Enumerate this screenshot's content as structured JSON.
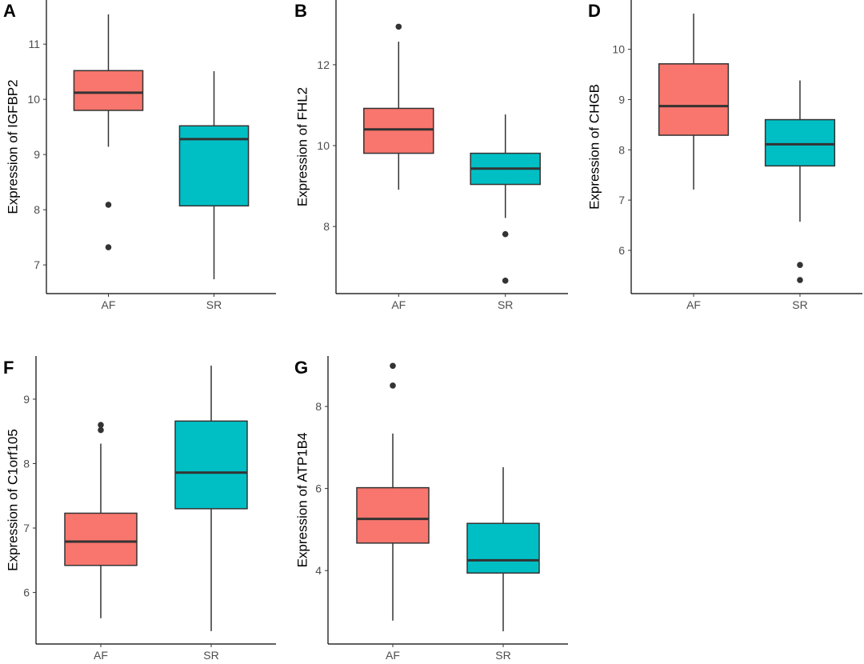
{
  "colors": {
    "AF": "#F8766D",
    "SR": "#00BFC4",
    "line": "#333333"
  },
  "chart_data": [
    {
      "type": "box",
      "panel": "A",
      "ylabel": "Expression of  IGFBP2",
      "categories": [
        "AF",
        "SR"
      ],
      "ylim": [
        6.48,
        11.8
      ],
      "yticks": [
        7,
        8,
        9,
        10,
        11
      ],
      "boxes": [
        {
          "group": "AF",
          "whisker_low": 9.14,
          "q1": 9.8,
          "median": 10.12,
          "q3": 10.52,
          "whisker_high": 11.54,
          "outliers": [
            8.09,
            7.32
          ]
        },
        {
          "group": "SR",
          "whisker_low": 6.74,
          "q1": 8.07,
          "median": 9.28,
          "q3": 9.52,
          "whisker_high": 10.51,
          "outliers": []
        }
      ]
    },
    {
      "type": "box",
      "panel": "B",
      "ylabel": "Expression of  FHL2",
      "categories": [
        "AF",
        "SR"
      ],
      "ylim": [
        6.34,
        13.6
      ],
      "yticks": [
        8,
        10,
        12
      ],
      "boxes": [
        {
          "group": "AF",
          "whisker_low": 8.91,
          "q1": 9.81,
          "median": 10.4,
          "q3": 10.92,
          "whisker_high": 12.57,
          "outliers": [
            12.94
          ]
        },
        {
          "group": "SR",
          "whisker_low": 8.21,
          "q1": 9.04,
          "median": 9.43,
          "q3": 9.81,
          "whisker_high": 10.77,
          "outliers": [
            7.81,
            6.66
          ]
        }
      ]
    },
    {
      "type": "box",
      "panel": "D",
      "ylabel": "Expression of  CHGB",
      "categories": [
        "AF",
        "SR"
      ],
      "ylim": [
        5.14,
        10.98
      ],
      "yticks": [
        6,
        7,
        8,
        9,
        10
      ],
      "boxes": [
        {
          "group": "AF",
          "whisker_low": 7.21,
          "q1": 8.29,
          "median": 8.87,
          "q3": 9.71,
          "whisker_high": 10.71,
          "outliers": []
        },
        {
          "group": "SR",
          "whisker_low": 6.57,
          "q1": 7.68,
          "median": 8.11,
          "q3": 8.6,
          "whisker_high": 9.38,
          "outliers": [
            5.71,
            5.41
          ]
        }
      ]
    },
    {
      "type": "box",
      "panel": "F",
      "ylabel": "Expression of  C1orf105",
      "categories": [
        "AF",
        "SR"
      ],
      "ylim": [
        5.2,
        9.67
      ],
      "yticks": [
        6,
        7,
        8,
        9
      ],
      "boxes": [
        {
          "group": "AF",
          "whisker_low": 5.6,
          "q1": 6.42,
          "median": 6.79,
          "q3": 7.23,
          "whisker_high": 8.31,
          "outliers": [
            8.6,
            8.52
          ]
        },
        {
          "group": "SR",
          "whisker_low": 5.4,
          "q1": 7.3,
          "median": 7.86,
          "q3": 8.66,
          "whisker_high": 9.52,
          "outliers": []
        }
      ]
    },
    {
      "type": "box",
      "panel": "G",
      "ylabel": "Expression of  ATP1B4",
      "categories": [
        "AF",
        "SR"
      ],
      "ylim": [
        2.21,
        9.23
      ],
      "yticks": [
        4,
        6,
        8
      ],
      "boxes": [
        {
          "group": "AF",
          "whisker_low": 2.78,
          "q1": 4.67,
          "median": 5.26,
          "q3": 6.02,
          "whisker_high": 7.34,
          "outliers": [
            8.99,
            8.51
          ]
        },
        {
          "group": "SR",
          "whisker_low": 2.52,
          "q1": 3.94,
          "median": 4.25,
          "q3": 5.15,
          "whisker_high": 6.52,
          "outliers": []
        }
      ]
    }
  ]
}
